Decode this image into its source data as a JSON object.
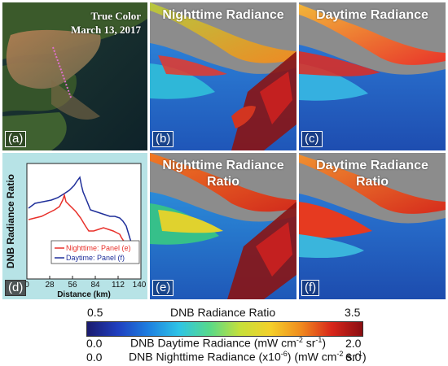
{
  "panels": {
    "a": {
      "label": "(a)",
      "title_line1": "True Color",
      "title_line2": "March 13, 2017"
    },
    "b": {
      "label": "(b)",
      "title": "Nighttime Radiance"
    },
    "c": {
      "label": "(c)",
      "title": "Daytime Radiance"
    },
    "d": {
      "label": "(d)"
    },
    "e": {
      "label": "(e)",
      "title_line1": "Nighttime Radiance",
      "title_line2": "Ratio"
    },
    "f": {
      "label": "(f)",
      "title_line1": "Daytime Radiance",
      "title_line2": "Ratio"
    }
  },
  "plot": {
    "ylabel": "DNB Radiance Ratio",
    "xlabel": "Distance (km)",
    "xticks": [
      "0",
      "28",
      "56",
      "84",
      "112",
      "140"
    ],
    "legend": [
      {
        "label": "Nighttime: Panel (e)",
        "color": "#e8302a"
      },
      {
        "label": "Daytime: Panel (f)",
        "color": "#1f2f9a"
      }
    ],
    "colors": {
      "background": "#b7e3e6",
      "night": "#e8302a",
      "day": "#1f2f9a"
    }
  },
  "colorbar": {
    "ratio_min": "0.5",
    "ratio_label": "DNB Radiance Ratio",
    "ratio_max": "3.5",
    "day_min": "0.0",
    "day_label_main": "DNB Daytime Radiance (mW cm",
    "day_label_exp1": "-2",
    "day_label_mid": " sr",
    "day_label_exp2": "-1",
    "day_label_end": ")",
    "day_max": "2.0",
    "night_min": "0.0",
    "night_label_main": "DNB Nighttime Radiance (x10",
    "night_label_exp0": "-6",
    "night_label_mid0": ") (mW cm",
    "night_label_exp1": "-2",
    "night_label_mid": " sr",
    "night_label_exp2": "-1",
    "night_label_end": ")",
    "night_max": "6.0",
    "stops": [
      "#1a1a6e",
      "#1f3fbf",
      "#1e7fe0",
      "#2ec4e6",
      "#57d98a",
      "#c6e03a",
      "#f4d02a",
      "#f08a1e",
      "#d8261a",
      "#8a0e12"
    ]
  }
}
